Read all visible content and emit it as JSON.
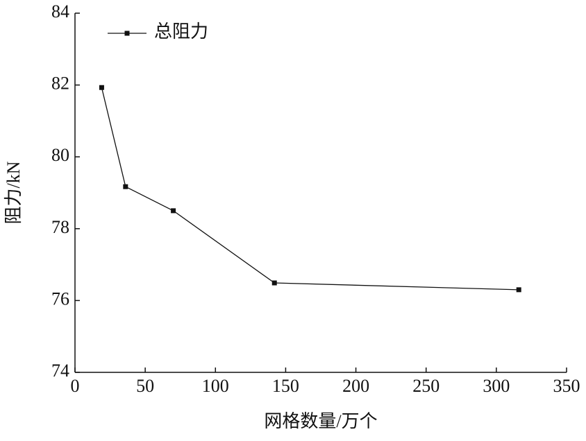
{
  "chart_data": {
    "type": "line",
    "xlabel": "网格数量/万个",
    "ylabel": "阻力/kN",
    "x": [
      19,
      36,
      70,
      142,
      316
    ],
    "series": [
      {
        "name": "总阻力",
        "color": "#111111",
        "values": [
          81.93,
          79.17,
          78.5,
          76.49,
          76.3
        ]
      }
    ],
    "xlim": [
      0,
      350
    ],
    "xticks": [
      0,
      50,
      100,
      150,
      200,
      250,
      300,
      350
    ],
    "ylim": [
      74,
      84
    ],
    "yticks": [
      74,
      76,
      78,
      80,
      82,
      84
    ],
    "grid": false,
    "legend": "upper left"
  }
}
